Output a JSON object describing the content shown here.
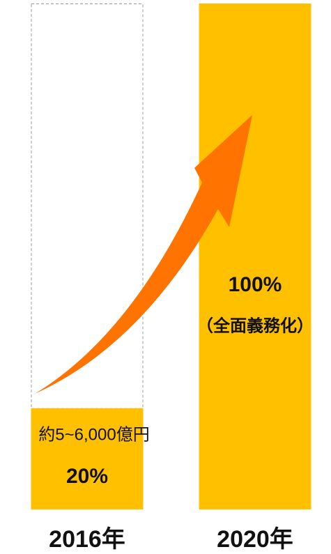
{
  "chart_data": {
    "type": "bar",
    "categories": [
      "2016年",
      "2020年"
    ],
    "values": [
      20,
      100
    ],
    "value_labels": [
      "20%",
      "100%"
    ],
    "annotations": [
      "約5~6,000億円",
      "（全面義務化）"
    ],
    "color": "#FFC000",
    "ylim": [
      0,
      100
    ]
  }
}
